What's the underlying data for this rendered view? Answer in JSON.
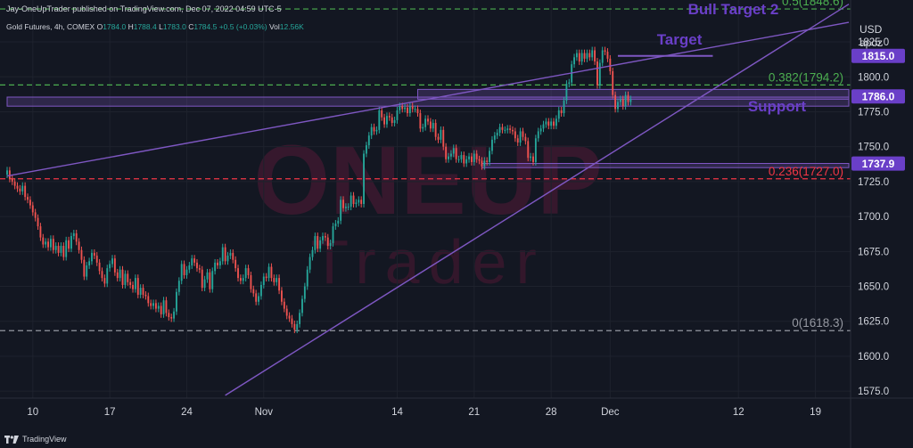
{
  "header": {
    "published": "Jay-OneUpTrader published on TradingView.com, Dec 07, 2022 04:59 UTC-5",
    "symbol": "Gold Futures, 4h, COMEX",
    "o_label": "O",
    "o": "1784.0",
    "h_label": "H",
    "h": "1788.4",
    "l_label": "L",
    "l": "1783.0",
    "c_label": "C",
    "c": "1784.5",
    "change": "+0.5 (+0.03%)",
    "vol_label": "Vol",
    "vol": "12.56K"
  },
  "footer": {
    "brand": "TradingView",
    "logo_icon": "tradingview-logo-icon"
  },
  "watermark": {
    "line1": "ONEUP",
    "line2": "Trader"
  },
  "colors": {
    "bg": "#131722",
    "up": "#26a69a",
    "down": "#ef5350",
    "purple": "#7e57c2",
    "green": "#4caf50",
    "red": "#f23645",
    "gray": "#9598a1",
    "label_purple": "#6a3fc8"
  },
  "chart_data": {
    "type": "candlestick",
    "currency": "USD",
    "unit": "apoz",
    "ylim": [
      1570,
      1855
    ],
    "yticks": [
      1575.0,
      1600.0,
      1625.0,
      1650.0,
      1675.0,
      1700.0,
      1725.0,
      1750.0,
      1775.0,
      1800.0,
      1825.0
    ],
    "x_ticks": [
      {
        "label": "10",
        "i": 10
      },
      {
        "label": "17",
        "i": 40
      },
      {
        "label": "24",
        "i": 70
      },
      {
        "label": "Nov",
        "i": 100
      },
      {
        "label": "14",
        "i": 152
      },
      {
        "label": "21",
        "i": 182
      },
      {
        "label": "28",
        "i": 212
      },
      {
        "label": "Dec",
        "i": 235
      },
      {
        "label": "12",
        "i": 285
      },
      {
        "label": "19",
        "i": 315
      }
    ],
    "x_max": 328,
    "closes": [
      1733,
      1727,
      1725,
      1722,
      1720,
      1718,
      1722,
      1714,
      1712,
      1708,
      1703,
      1699,
      1693,
      1685,
      1680,
      1682,
      1678,
      1684,
      1676,
      1679,
      1674,
      1679,
      1671,
      1683,
      1677,
      1686,
      1688,
      1682,
      1676,
      1669,
      1657,
      1665,
      1668,
      1674,
      1672,
      1667,
      1661,
      1656,
      1652,
      1663,
      1666,
      1670,
      1660,
      1656,
      1662,
      1651,
      1659,
      1653,
      1651,
      1648,
      1656,
      1644,
      1649,
      1644,
      1643,
      1638,
      1636,
      1638,
      1634,
      1636,
      1630,
      1640,
      1631,
      1628,
      1627,
      1632,
      1646,
      1654,
      1666,
      1658,
      1662,
      1665,
      1670,
      1667,
      1663,
      1662,
      1649,
      1655,
      1660,
      1648,
      1661,
      1667,
      1665,
      1668,
      1678,
      1668,
      1672,
      1674,
      1669,
      1663,
      1656,
      1654,
      1656,
      1663,
      1658,
      1648,
      1645,
      1639,
      1643,
      1651,
      1657,
      1656,
      1664,
      1656,
      1653,
      1656,
      1647,
      1639,
      1634,
      1629,
      1627,
      1623,
      1619,
      1623,
      1631,
      1641,
      1650,
      1662,
      1671,
      1676,
      1686,
      1677,
      1683,
      1686,
      1685,
      1679,
      1681,
      1693,
      1695,
      1697,
      1712,
      1706,
      1707,
      1707,
      1715,
      1709,
      1710,
      1712,
      1709,
      1745,
      1751,
      1758,
      1764,
      1761,
      1762,
      1776,
      1771,
      1766,
      1772,
      1771,
      1767,
      1769,
      1776,
      1779,
      1777,
      1778,
      1774,
      1779,
      1777,
      1777,
      1774,
      1763,
      1764,
      1770,
      1768,
      1763,
      1767,
      1757,
      1755,
      1762,
      1750,
      1741,
      1743,
      1745,
      1749,
      1741,
      1741,
      1744,
      1738,
      1741,
      1743,
      1739,
      1745,
      1741,
      1740,
      1736,
      1740,
      1739,
      1747,
      1755,
      1758,
      1760,
      1764,
      1762,
      1762,
      1763,
      1762,
      1761,
      1756,
      1753,
      1761,
      1757,
      1754,
      1742,
      1743,
      1739,
      1756,
      1761,
      1763,
      1766,
      1768,
      1765,
      1768,
      1765,
      1770,
      1776,
      1774,
      1783,
      1795,
      1796,
      1809,
      1814,
      1817,
      1811,
      1817,
      1813,
      1817,
      1814,
      1819,
      1811,
      1794,
      1810,
      1819,
      1818,
      1813,
      1804,
      1787,
      1777,
      1782,
      1784,
      1779,
      1787,
      1782,
      1784
    ],
    "lines": [
      {
        "kind": "fib",
        "label": "0.5(1848.6)",
        "value": 1848.6,
        "color": "#4caf50",
        "style": "dashed"
      },
      {
        "kind": "fib",
        "label": "0.382(1794.2)",
        "value": 1794.2,
        "color": "#4caf50",
        "style": "dashed"
      },
      {
        "kind": "fib",
        "label": "0.236(1727.0)",
        "value": 1727.0,
        "color": "#f23645",
        "style": "dashed"
      },
      {
        "kind": "fib",
        "label": "0(1618.3)",
        "value": 1618.3,
        "color": "#9598a1",
        "style": "dashed"
      }
    ],
    "price_badges": [
      {
        "value": 1815.0,
        "label": "1815.0"
      },
      {
        "value": 1786.0,
        "label": "1786.0"
      },
      {
        "value": 1737.9,
        "label": "1737.9"
      }
    ],
    "annotations": [
      {
        "text": "Bull Target 2",
        "i": 283,
        "value": 1848.6
      },
      {
        "text": "Target",
        "i": 262,
        "value": 1827
      },
      {
        "text": "Support",
        "i": 300,
        "value": 1779
      }
    ],
    "zones": [
      {
        "from_i": 0,
        "to_i": 328,
        "low": 1779,
        "high": 1785.5
      },
      {
        "from_i": 160,
        "to_i": 328,
        "low": 1784,
        "high": 1791
      },
      {
        "from_i": 185,
        "to_i": 328,
        "low": 1735,
        "high": 1738
      }
    ],
    "segments": [
      {
        "from_i": 238,
        "to_i": 275,
        "value": 1815.0
      }
    ],
    "trendlines": [
      {
        "i1": 0,
        "v1": 1729,
        "i2": 328,
        "v2": 1839
      },
      {
        "i1": 85,
        "v1": 1572,
        "i2": 328,
        "v2": 1852
      }
    ]
  }
}
